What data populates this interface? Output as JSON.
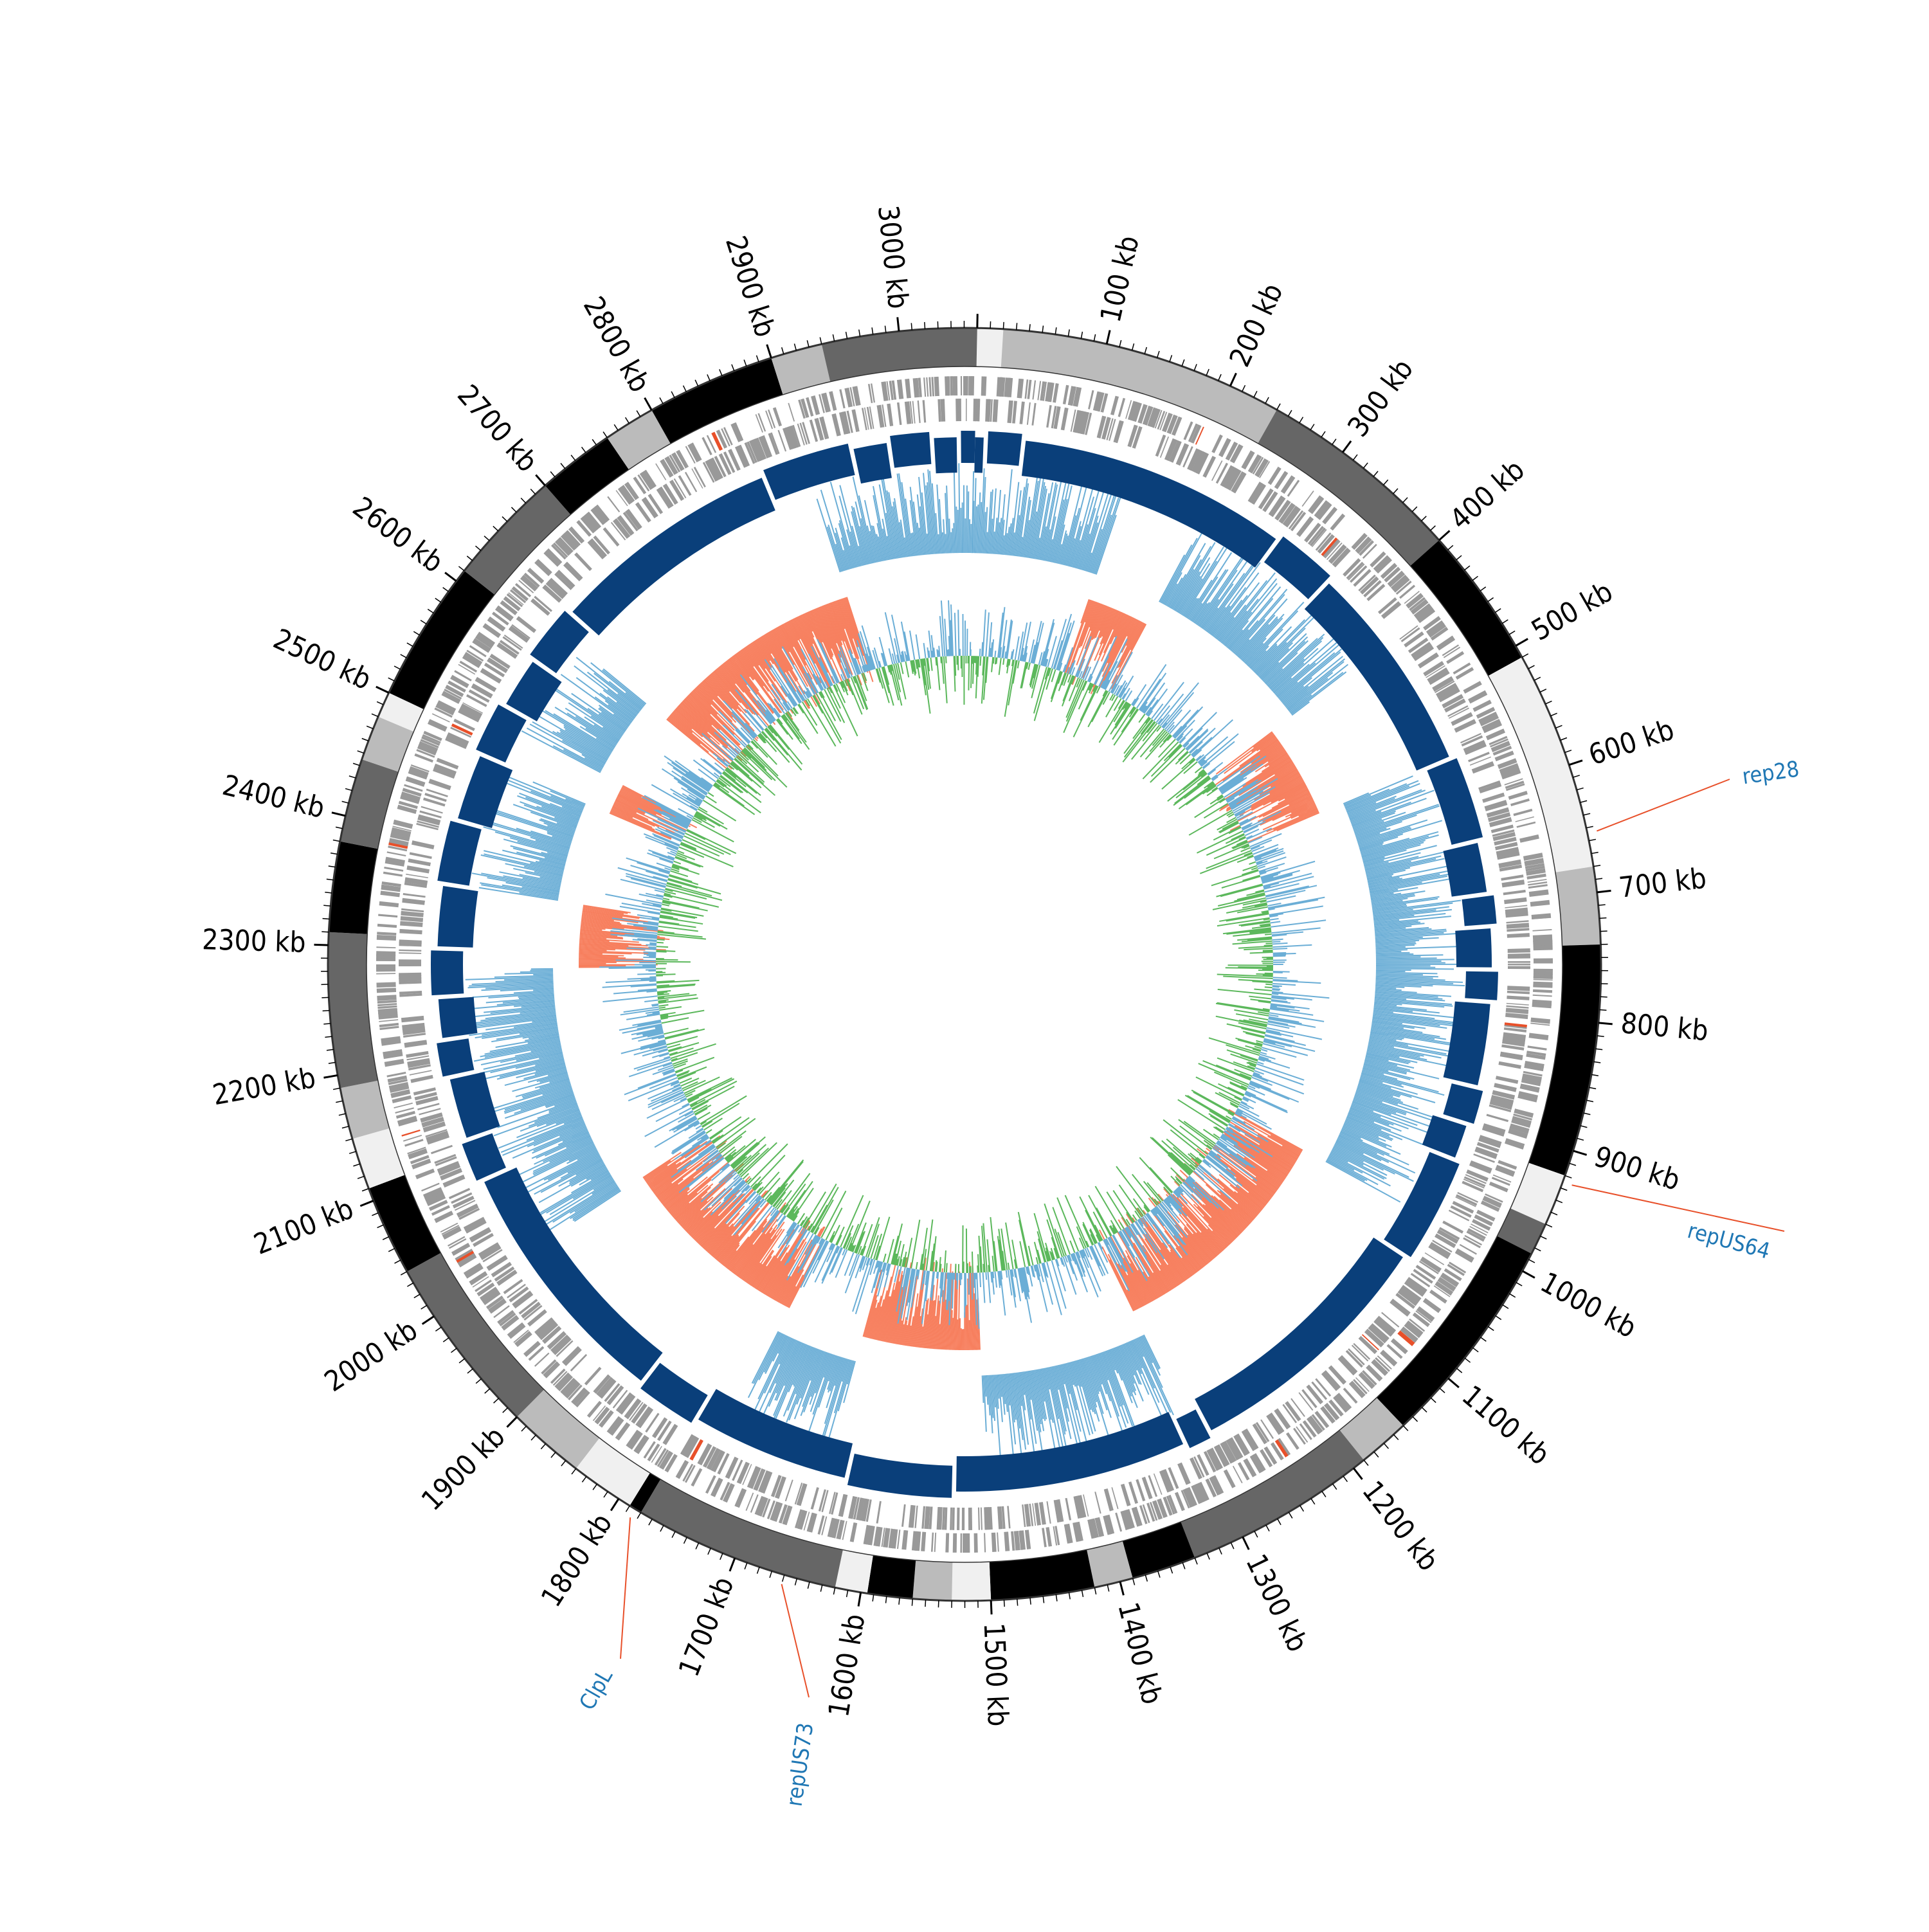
{
  "genome": {
    "length_kb": 3060,
    "tick_labels": [
      "100 kb",
      "200 kb",
      "300 kb",
      "400 kb",
      "500 kb",
      "600 kb",
      "700 kb",
      "800 kb",
      "900 kb",
      "1000 kb",
      "1100 kb",
      "1200 kb",
      "1300 kb",
      "1400 kb",
      "1500 kb",
      "1600 kb",
      "1700 kb",
      "1800 kb",
      "1900 kb",
      "2000 kb",
      "2100 kb",
      "2200 kb",
      "2300 kb",
      "2400 kb",
      "2500 kb",
      "2600 kb",
      "2700 kb",
      "2800 kb",
      "2900 kb",
      "3000 kb"
    ],
    "tick_positions_kb": [
      100,
      200,
      300,
      400,
      500,
      600,
      700,
      800,
      900,
      1000,
      1100,
      1200,
      1300,
      1400,
      1500,
      1600,
      1700,
      1800,
      1900,
      2000,
      2100,
      2200,
      2300,
      2400,
      2500,
      2600,
      2700,
      2800,
      2900,
      3000
    ]
  },
  "annotations": [
    {
      "label": "rep28",
      "position_kb": 654
    },
    {
      "label": "repUS64",
      "position_kb": 925
    },
    {
      "label": "repUS73",
      "position_kb": 1660
    },
    {
      "label": "ClpL",
      "position_kb": 1785
    }
  ],
  "colors": {
    "label_blue": "#1f77b4",
    "leader_red": "#e8502a",
    "contig_blue": "#0a3f7a",
    "skew_positive": "#6baed6",
    "skew_negative": "#f77f5e",
    "gc_green": "#5cb85c",
    "gc_blue": "#6baed6",
    "gene_gray": "#999999"
  },
  "tracks": {
    "outer_bands": [
      {
        "start": 0,
        "end": 20,
        "shade": "#f0f0f0"
      },
      {
        "start": 20,
        "end": 240,
        "shade": "#bbbbbb"
      },
      {
        "start": 240,
        "end": 400,
        "shade": "#666666"
      },
      {
        "start": 400,
        "end": 510,
        "shade": "#000000"
      },
      {
        "start": 510,
        "end": 680,
        "shade": "#f0f0f0"
      },
      {
        "start": 680,
        "end": 740,
        "shade": "#bbbbbb"
      },
      {
        "start": 740,
        "end": 920,
        "shade": "#000000"
      },
      {
        "start": 920,
        "end": 960,
        "shade": "#f0f0f0"
      },
      {
        "start": 960,
        "end": 985,
        "shade": "#666666"
      },
      {
        "start": 985,
        "end": 1150,
        "shade": "#000000"
      },
      {
        "start": 1150,
        "end": 1190,
        "shade": "#bbbbbb"
      },
      {
        "start": 1190,
        "end": 1340,
        "shade": "#666666"
      },
      {
        "start": 1340,
        "end": 1390,
        "shade": "#000000"
      },
      {
        "start": 1390,
        "end": 1420,
        "shade": "#bbbbbb"
      },
      {
        "start": 1420,
        "end": 1500,
        "shade": "#000000"
      },
      {
        "start": 1500,
        "end": 1530,
        "shade": "#f0f0f0"
      },
      {
        "start": 1530,
        "end": 1560,
        "shade": "#bbbbbb"
      },
      {
        "start": 1560,
        "end": 1595,
        "shade": "#000000"
      },
      {
        "start": 1595,
        "end": 1620,
        "shade": "#f0f0f0"
      },
      {
        "start": 1620,
        "end": 1780,
        "shade": "#666666"
      },
      {
        "start": 1780,
        "end": 1790,
        "shade": "#000000"
      },
      {
        "start": 1790,
        "end": 1840,
        "shade": "#f0f0f0"
      },
      {
        "start": 1840,
        "end": 1900,
        "shade": "#bbbbbb"
      },
      {
        "start": 1900,
        "end": 2040,
        "shade": "#666666"
      },
      {
        "start": 2040,
        "end": 2110,
        "shade": "#000000"
      },
      {
        "start": 2110,
        "end": 2150,
        "shade": "#f0f0f0"
      },
      {
        "start": 2150,
        "end": 2190,
        "shade": "#bbbbbb"
      },
      {
        "start": 2190,
        "end": 2310,
        "shade": "#666666"
      },
      {
        "start": 2310,
        "end": 2380,
        "shade": "#000000"
      },
      {
        "start": 2380,
        "end": 2445,
        "shade": "#666666"
      },
      {
        "start": 2445,
        "end": 2480,
        "shade": "#bbbbbb"
      },
      {
        "start": 2480,
        "end": 2500,
        "shade": "#f0f0f0"
      },
      {
        "start": 2500,
        "end": 2610,
        "shade": "#000000"
      },
      {
        "start": 2610,
        "end": 2700,
        "shade": "#666666"
      },
      {
        "start": 2700,
        "end": 2760,
        "shade": "#000000"
      },
      {
        "start": 2760,
        "end": 2800,
        "shade": "#bbbbbb"
      },
      {
        "start": 2800,
        "end": 2900,
        "shade": "#000000"
      },
      {
        "start": 2900,
        "end": 2940,
        "shade": "#bbbbbb"
      },
      {
        "start": 2940,
        "end": 3060,
        "shade": "#666666"
      }
    ],
    "contig_gaps_kb": [
      10,
      45,
      300,
      360,
      560,
      640,
      690,
      720,
      760,
      790,
      870,
      905,
      940,
      1040,
      1285,
      1310,
      1530,
      1630,
      1780,
      1840,
      2080,
      2120,
      2180,
      2215,
      2255,
      2300,
      2360,
      2420,
      2485,
      2535,
      2585,
      2640,
      2860,
      2945,
      2980,
      3020,
      3045
    ]
  }
}
